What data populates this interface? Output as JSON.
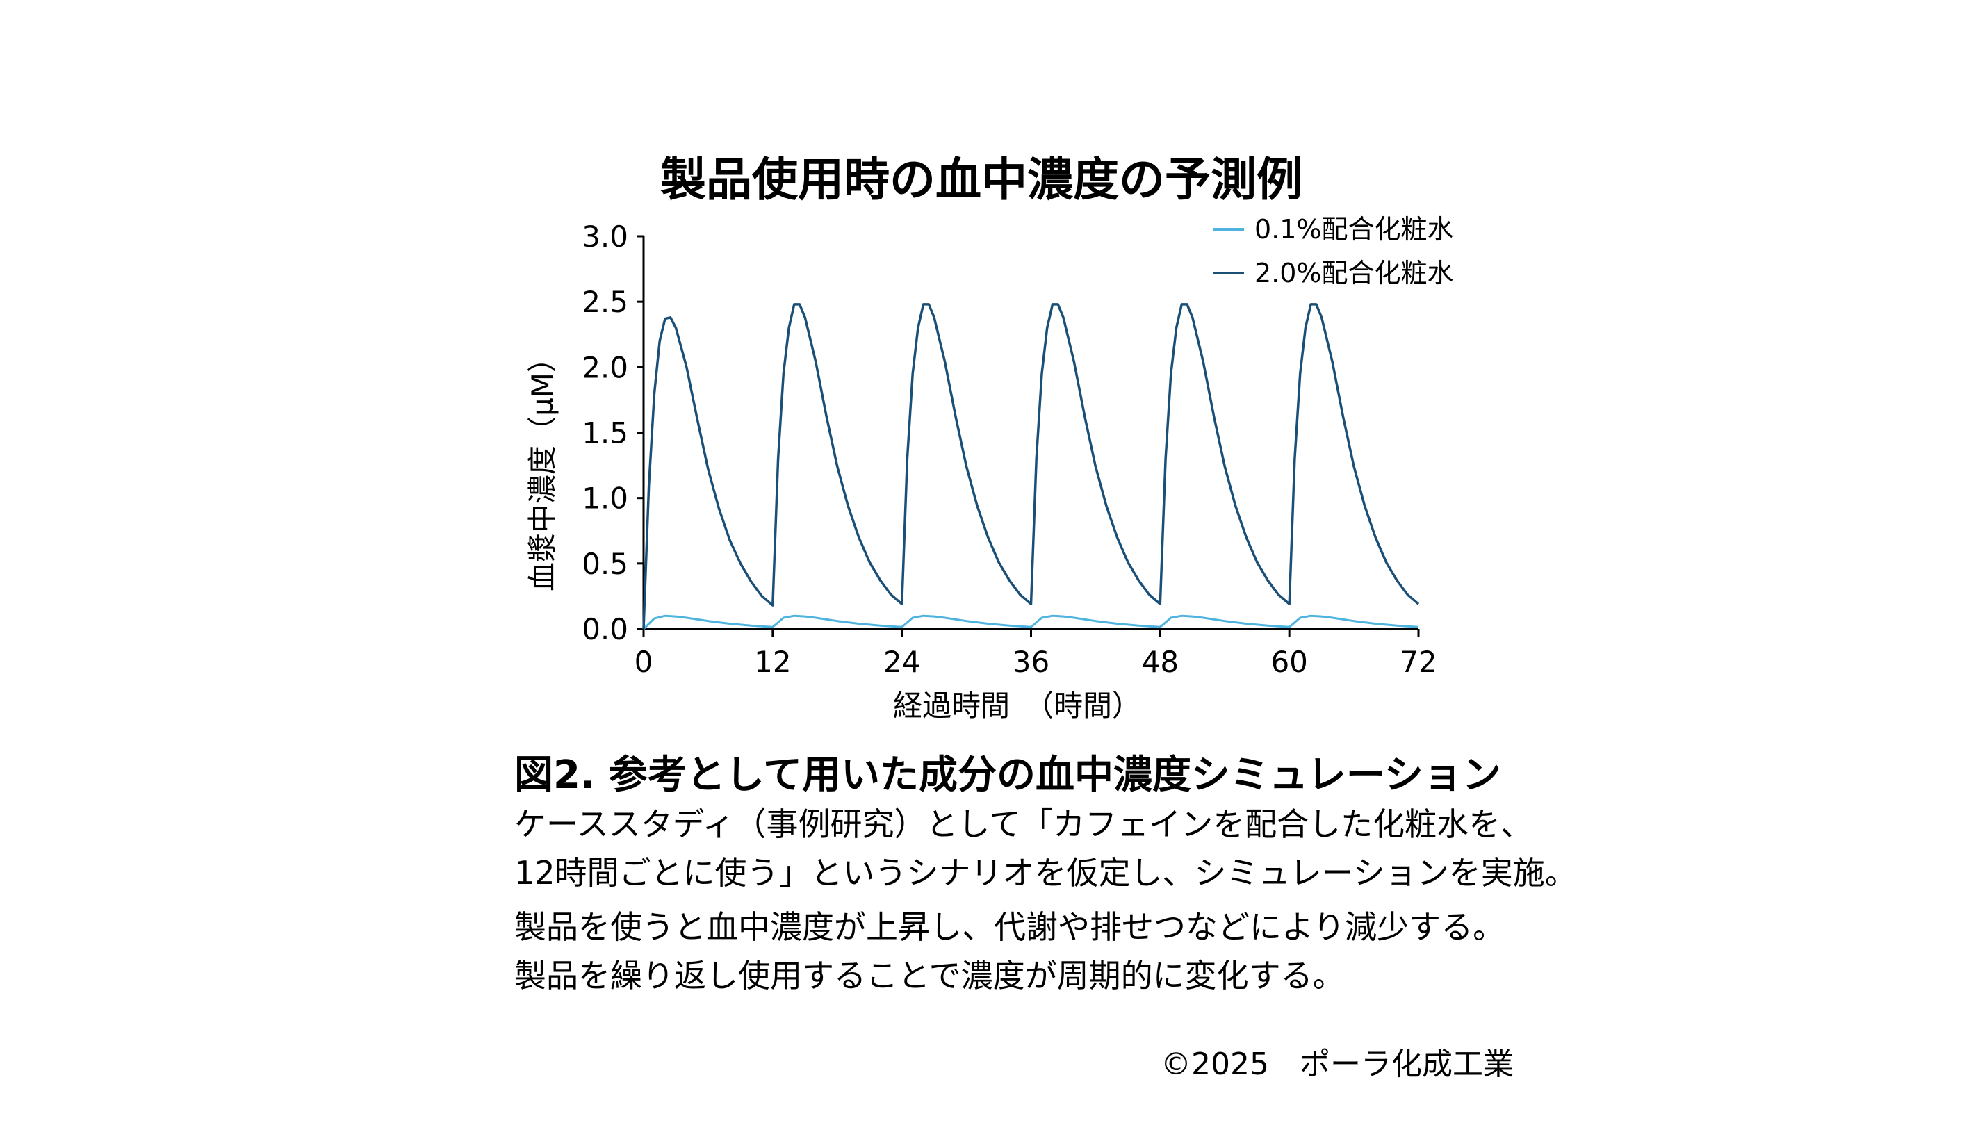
{
  "chart_data": {
    "type": "line",
    "title": "製品使用時の血中濃度の予測例",
    "xlabel": "経過時間　（時間）",
    "ylabel": "血漿中濃度（μM）",
    "xlim": [
      0,
      72
    ],
    "ylim": [
      0,
      3.0
    ],
    "xticks": [
      "0",
      "12",
      "24",
      "36",
      "48",
      "60",
      "72"
    ],
    "yticks": [
      "0.0",
      "0.5",
      "1.0",
      "1.5",
      "2.0",
      "2.5",
      "3.0"
    ],
    "dosing_interval_hours": 12,
    "grid": false,
    "legend_position": "top-right",
    "series": [
      {
        "name": "0.1%配合化粧水",
        "color": "#4fb3e0",
        "x": [
          0,
          1,
          2,
          3,
          4,
          6,
          8,
          10,
          12,
          12.3,
          13,
          14,
          15,
          16,
          18,
          20,
          22,
          24,
          24.3,
          25,
          26,
          27,
          28,
          30,
          32,
          34,
          36,
          36.3,
          37,
          38,
          39,
          40,
          42,
          44,
          46,
          48,
          48.3,
          49,
          50,
          51,
          52,
          54,
          56,
          58,
          60,
          60.3,
          61,
          62,
          63,
          64,
          66,
          68,
          70,
          72
        ],
        "y": [
          0,
          0.08,
          0.1,
          0.095,
          0.085,
          0.06,
          0.04,
          0.025,
          0.015,
          0.035,
          0.085,
          0.1,
          0.095,
          0.085,
          0.06,
          0.04,
          0.025,
          0.015,
          0.035,
          0.085,
          0.1,
          0.095,
          0.085,
          0.06,
          0.04,
          0.025,
          0.015,
          0.035,
          0.085,
          0.1,
          0.095,
          0.085,
          0.06,
          0.04,
          0.025,
          0.015,
          0.035,
          0.085,
          0.1,
          0.095,
          0.085,
          0.06,
          0.04,
          0.025,
          0.015,
          0.035,
          0.085,
          0.1,
          0.095,
          0.085,
          0.06,
          0.04,
          0.025,
          0.015
        ]
      },
      {
        "name": "2.0%配合化粧水",
        "color": "#1a4f78",
        "x": [
          0,
          0.5,
          1,
          1.5,
          2,
          2.5,
          3,
          4,
          5,
          6,
          7,
          8,
          9,
          10,
          11,
          12,
          12.5,
          13,
          13.5,
          14,
          14.5,
          15,
          16,
          17,
          18,
          19,
          20,
          21,
          22,
          23,
          24,
          24.5,
          25,
          25.5,
          26,
          26.5,
          27,
          28,
          29,
          30,
          31,
          32,
          33,
          34,
          35,
          36,
          36.5,
          37,
          37.5,
          38,
          38.5,
          39,
          40,
          41,
          42,
          43,
          44,
          45,
          46,
          47,
          48,
          48.5,
          49,
          49.5,
          50,
          50.5,
          51,
          52,
          53,
          54,
          55,
          56,
          57,
          58,
          59,
          60,
          60.5,
          61,
          61.5,
          62,
          62.5,
          63,
          64,
          65,
          66,
          67,
          68,
          69,
          70,
          71,
          72
        ],
        "y": [
          0,
          1.1,
          1.8,
          2.2,
          2.37,
          2.38,
          2.3,
          2.0,
          1.6,
          1.22,
          0.92,
          0.68,
          0.5,
          0.36,
          0.25,
          0.18,
          1.3,
          1.95,
          2.3,
          2.48,
          2.48,
          2.38,
          2.04,
          1.62,
          1.24,
          0.94,
          0.7,
          0.51,
          0.37,
          0.26,
          0.19,
          1.3,
          1.95,
          2.3,
          2.48,
          2.48,
          2.38,
          2.04,
          1.62,
          1.24,
          0.94,
          0.7,
          0.51,
          0.37,
          0.26,
          0.19,
          1.3,
          1.95,
          2.3,
          2.48,
          2.48,
          2.38,
          2.04,
          1.62,
          1.24,
          0.94,
          0.7,
          0.51,
          0.37,
          0.26,
          0.19,
          1.3,
          1.95,
          2.3,
          2.48,
          2.48,
          2.38,
          2.04,
          1.62,
          1.24,
          0.94,
          0.7,
          0.51,
          0.37,
          0.26,
          0.19,
          1.3,
          1.95,
          2.3,
          2.48,
          2.48,
          2.38,
          2.04,
          1.62,
          1.24,
          0.94,
          0.7,
          0.51,
          0.37,
          0.26,
          0.19
        ]
      }
    ]
  },
  "caption": {
    "title": "図2. 参考として用いた成分の血中濃度シミュレーション",
    "lines": [
      "ケーススタディ（事例研究）として「カフェインを配合した化粧水を、",
      "12時間ごとに使う」というシナリオを仮定し、シミュレーションを実施。",
      "製品を使うと血中濃度が上昇し、代謝や排せつなどにより減少する。",
      "製品を繰り返し使用することで濃度が周期的に変化する。"
    ]
  },
  "copyright": "©2025　ポーラ化成工業"
}
